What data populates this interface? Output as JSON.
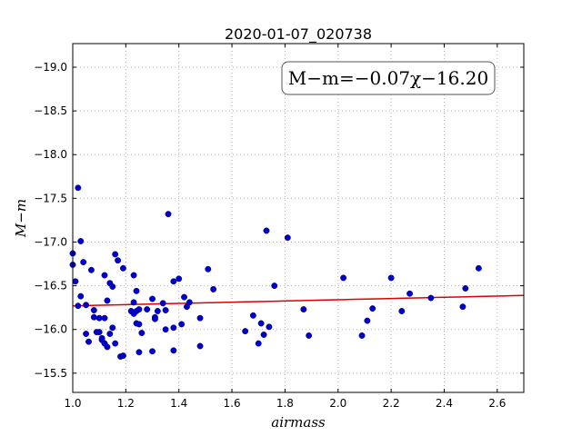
{
  "chart_data": {
    "type": "scatter",
    "title": "2020-01-07_020738",
    "xlabel": "airmass",
    "ylabel": "M−m",
    "xlim": [
      1.0,
      2.7
    ],
    "ylim": [
      -19.27,
      -15.28
    ],
    "y_inverted": true,
    "grid": true,
    "xticks": [
      1.0,
      1.2,
      1.4,
      1.6,
      1.8,
      2.0,
      2.2,
      2.4,
      2.6
    ],
    "xtick_labels": [
      "1.0",
      "1.2",
      "1.4",
      "1.6",
      "1.8",
      "2.0",
      "2.2",
      "2.4",
      "2.6"
    ],
    "yticks": [
      -15.5,
      -16.0,
      -16.5,
      -17.0,
      -17.5,
      -18.0,
      -18.5,
      -19.0
    ],
    "ytick_labels": [
      "−15.5",
      "−16.0",
      "−16.5",
      "−17.0",
      "−17.5",
      "−18.0",
      "−18.5",
      "−19.0"
    ],
    "annotation": "M−m=−0.07χ−16.20",
    "colors": {
      "points": "#0000cc",
      "fit_line": "#dd0000",
      "grid": "#b0b0b0"
    },
    "fit_line": {
      "slope": -0.07,
      "intercept": -16.2
    },
    "points": [
      [
        1.0,
        -16.74
      ],
      [
        1.0,
        -16.87
      ],
      [
        1.01,
        -16.55
      ],
      [
        1.02,
        -17.62
      ],
      [
        1.02,
        -16.27
      ],
      [
        1.03,
        -16.38
      ],
      [
        1.03,
        -17.01
      ],
      [
        1.04,
        -16.77
      ],
      [
        1.05,
        -16.28
      ],
      [
        1.05,
        -15.95
      ],
      [
        1.06,
        -15.86
      ],
      [
        1.07,
        -16.68
      ],
      [
        1.08,
        -16.14
      ],
      [
        1.08,
        -16.22
      ],
      [
        1.09,
        -15.97
      ],
      [
        1.1,
        -16.13
      ],
      [
        1.1,
        -15.97
      ],
      [
        1.11,
        -15.9
      ],
      [
        1.11,
        -15.88
      ],
      [
        1.12,
        -16.13
      ],
      [
        1.12,
        -15.84
      ],
      [
        1.12,
        -16.62
      ],
      [
        1.13,
        -16.33
      ],
      [
        1.13,
        -15.8
      ],
      [
        1.14,
        -16.53
      ],
      [
        1.14,
        -15.95
      ],
      [
        1.15,
        -16.02
      ],
      [
        1.15,
        -16.49
      ],
      [
        1.16,
        -15.84
      ],
      [
        1.16,
        -16.86
      ],
      [
        1.17,
        -16.79
      ],
      [
        1.18,
        -15.69
      ],
      [
        1.19,
        -16.7
      ],
      [
        1.19,
        -15.7
      ],
      [
        1.22,
        -16.21
      ],
      [
        1.23,
        -16.18
      ],
      [
        1.23,
        -16.31
      ],
      [
        1.23,
        -16.62
      ],
      [
        1.24,
        -16.07
      ],
      [
        1.24,
        -16.44
      ],
      [
        1.24,
        -16.21
      ],
      [
        1.25,
        -16.23
      ],
      [
        1.25,
        -15.74
      ],
      [
        1.25,
        -16.06
      ],
      [
        1.26,
        -15.96
      ],
      [
        1.28,
        -16.23
      ],
      [
        1.3,
        -16.35
      ],
      [
        1.3,
        -15.75
      ],
      [
        1.31,
        -16.12
      ],
      [
        1.31,
        -16.14
      ],
      [
        1.32,
        -16.21
      ],
      [
        1.34,
        -16.3
      ],
      [
        1.35,
        -16.0
      ],
      [
        1.35,
        -16.22
      ],
      [
        1.36,
        -17.32
      ],
      [
        1.38,
        -16.02
      ],
      [
        1.38,
        -16.55
      ],
      [
        1.38,
        -15.76
      ],
      [
        1.4,
        -16.58
      ],
      [
        1.41,
        -16.06
      ],
      [
        1.42,
        -16.37
      ],
      [
        1.43,
        -16.26
      ],
      [
        1.44,
        -16.31
      ],
      [
        1.48,
        -15.81
      ],
      [
        1.48,
        -16.13
      ],
      [
        1.51,
        -16.69
      ],
      [
        1.53,
        -16.46
      ],
      [
        1.65,
        -15.98
      ],
      [
        1.68,
        -16.16
      ],
      [
        1.7,
        -15.84
      ],
      [
        1.71,
        -16.07
      ],
      [
        1.72,
        -15.94
      ],
      [
        1.73,
        -17.13
      ],
      [
        1.74,
        -16.03
      ],
      [
        1.76,
        -16.5
      ],
      [
        1.81,
        -17.05
      ],
      [
        1.87,
        -16.23
      ],
      [
        1.89,
        -15.93
      ],
      [
        2.02,
        -16.59
      ],
      [
        2.09,
        -15.93
      ],
      [
        2.11,
        -16.1
      ],
      [
        2.13,
        -16.24
      ],
      [
        2.2,
        -16.59
      ],
      [
        2.24,
        -16.21
      ],
      [
        2.27,
        -16.41
      ],
      [
        2.35,
        -16.36
      ],
      [
        2.47,
        -16.26
      ],
      [
        2.48,
        -16.47
      ],
      [
        2.53,
        -16.7
      ]
    ]
  }
}
